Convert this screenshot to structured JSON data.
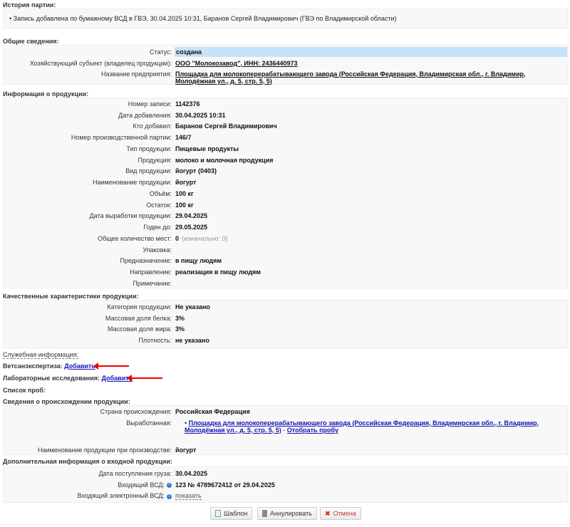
{
  "history": {
    "title": "История партии:",
    "entries": [
      "Запись добавлена по бумажному ВСД в ГВЭ, 30.04.2025 10:31, Баранов Сергей Владимирович (ГВЭ по Владимирской области)"
    ]
  },
  "general": {
    "title": "Общие сведения:",
    "rows": [
      {
        "label": "Статус:",
        "value": "создана",
        "highlight": true
      },
      {
        "label": "Хозяйствующий субъект (владелец продукции):",
        "value": "ООО \"Молокозавод\", ИНН: 2436440973",
        "link": true
      },
      {
        "label": "Название предприятия:",
        "value": "Площадка для молокоперерабатывающего завода (Российская Федерация, Владимирская обл., г. Владимир, Молодёжная ул., д. 5, стр. 5, 5)",
        "link": true
      }
    ]
  },
  "product": {
    "title": "Информация о продукции:",
    "rows": [
      {
        "label": "Номер записи:",
        "value": "1142376"
      },
      {
        "label": "Дата добавления:",
        "value": "30.04.2025 10:31"
      },
      {
        "label": "Кто добавил:",
        "value": "Баранов Сергей Владимирович"
      },
      {
        "label": "Номер производственной партии:",
        "value": "146/7"
      },
      {
        "label": "Тип продукции:",
        "value": "Пищевые продукты"
      },
      {
        "label": "Продукция:",
        "value": "молоко и молочная продукция"
      },
      {
        "label": "Вид продукции:",
        "value": "йогурт (0403)"
      },
      {
        "label": "Наименование продукции:",
        "value": "йогурт"
      },
      {
        "label": "Объём:",
        "value": "100 кг"
      },
      {
        "label": "Остаток:",
        "value": "100 кг"
      },
      {
        "label": "Дата выработки продукции:",
        "value": "29.04.2025"
      },
      {
        "label": "Годен до:",
        "value": "29.05.2025"
      },
      {
        "label": "Общее количество мест:",
        "value": "0",
        "note": "(изначально: 0)"
      },
      {
        "label": "Упаковка:",
        "value": ""
      },
      {
        "label": "Предназначение:",
        "value": "в пищу людям"
      },
      {
        "label": "Направление:",
        "value": "реализация в пищу людям"
      },
      {
        "label": "Примечание:",
        "value": ""
      }
    ]
  },
  "quality": {
    "title": "Качественные характеристики продукции:",
    "rows": [
      {
        "label": "Категория продукции:",
        "value": "Не указано"
      },
      {
        "label": "Массовая доля белка:",
        "value": "3%"
      },
      {
        "label": "Массовая доля жира:",
        "value": "3%"
      },
      {
        "label": "Плотность:",
        "value": "не указано"
      }
    ]
  },
  "service": {
    "title": "Служебная информация:",
    "vet_label": "Ветсанэкспертиза:",
    "vet_link": "Добавить",
    "lab_label": "Лабораторные исследования:",
    "lab_link": "Добавить",
    "samples_label": "Список проб:"
  },
  "origin": {
    "title": "Сведения о происхождении продукции:",
    "country_label": "Страна происхождения:",
    "country": "Российская Федерация",
    "produced_label": "Выработанная:",
    "produced_link": "Площадка для молокоперерабатывающего завода (Российская Федерация, Владимирская обл., г. Владимир, Молодёжная ул., д. 5, стр. 5, 5)",
    "sample_link": "Отобрать пробу",
    "name_label": "Наименование продукции при производстве:",
    "name": "йогурт"
  },
  "extra": {
    "title": "Дополнительная информация о входной продукции:",
    "date_label": "Дата поступления груза:",
    "date": "30.04.2025",
    "vsd_label": "Входящий ВСД:",
    "vsd": "123 № 4789672412 от 29.04.2025",
    "evsd_label": "Входящий электронный ВСД:",
    "evsd_link": "показать"
  },
  "buttons": {
    "template": "Шаблон",
    "annul": "Аннулировать",
    "cancel": "Отмена"
  },
  "colors": {
    "highlight": "#c6e3fb",
    "link": "#1515b5",
    "arrow": "#e00000",
    "cancel_icon": "#e03030"
  }
}
